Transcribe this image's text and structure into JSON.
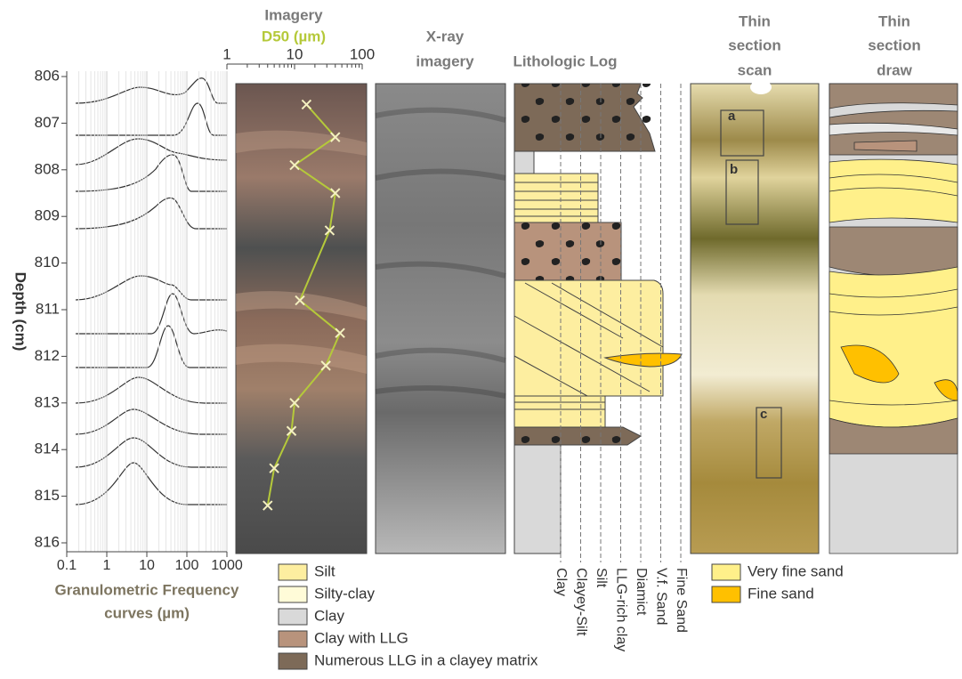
{
  "chart_data": [
    {
      "type": "frequency-curves",
      "xlabel": [
        "Granulometric Frequency",
        "curves (µm)"
      ],
      "ylabel": "Depth (cm)",
      "xlog": true,
      "xlim": [
        0.1,
        1000
      ],
      "xticks": [
        0.1,
        1,
        10,
        100,
        1000
      ],
      "ylim": [
        806,
        816
      ],
      "yticks": [
        806,
        807,
        808,
        809,
        810,
        811,
        812,
        813,
        814,
        815,
        816
      ],
      "grid": true
    },
    {
      "type": "line",
      "title": "Imagery",
      "xlabel": "D50 (µm)",
      "color": "#b5c93a",
      "marker": "x",
      "xlog": true,
      "xlim": [
        1,
        100
      ],
      "xticks": [
        1,
        10,
        100
      ],
      "ylim": [
        806,
        816
      ],
      "depth": [
        806.6,
        807.3,
        807.9,
        808.5,
        809.3,
        810.8,
        811.5,
        812.2,
        813.0,
        813.6,
        814.4,
        815.2
      ],
      "values": [
        15,
        40,
        10,
        40,
        33,
        12,
        47,
        29,
        10,
        9,
        5,
        4
      ]
    }
  ],
  "panels": {
    "xray": [
      "X-ray",
      "imagery"
    ],
    "lithologic_log": "Lithologic Log",
    "scan": [
      "Thin",
      "section",
      "scan"
    ],
    "draw": [
      "Thin",
      "section",
      "draw"
    ]
  },
  "grain_classes": [
    "Clay",
    "Clayey-Silt",
    "Silt",
    "LLG-rich clay",
    "Diamict",
    "V.f. Sand",
    "Fine Sand"
  ],
  "lithology_legend": [
    {
      "label": "Silt",
      "color": "#fdeea0"
    },
    {
      "label": "Silty-clay",
      "color": "#fffbd8"
    },
    {
      "label": "Clay",
      "color": "#d9d9d9"
    },
    {
      "label": "Clay with LLG",
      "color": "#b8937c"
    },
    {
      "label": "Numerous LLG in a clayey matrix",
      "color": "#7d6a58"
    }
  ],
  "thin_section_legend": [
    {
      "label": "Very fine sand",
      "color": "#fff08a"
    },
    {
      "label": "Fine sand",
      "color": "#ffc000"
    }
  ],
  "thin_section_labels": [
    "a",
    "b",
    "c"
  ]
}
